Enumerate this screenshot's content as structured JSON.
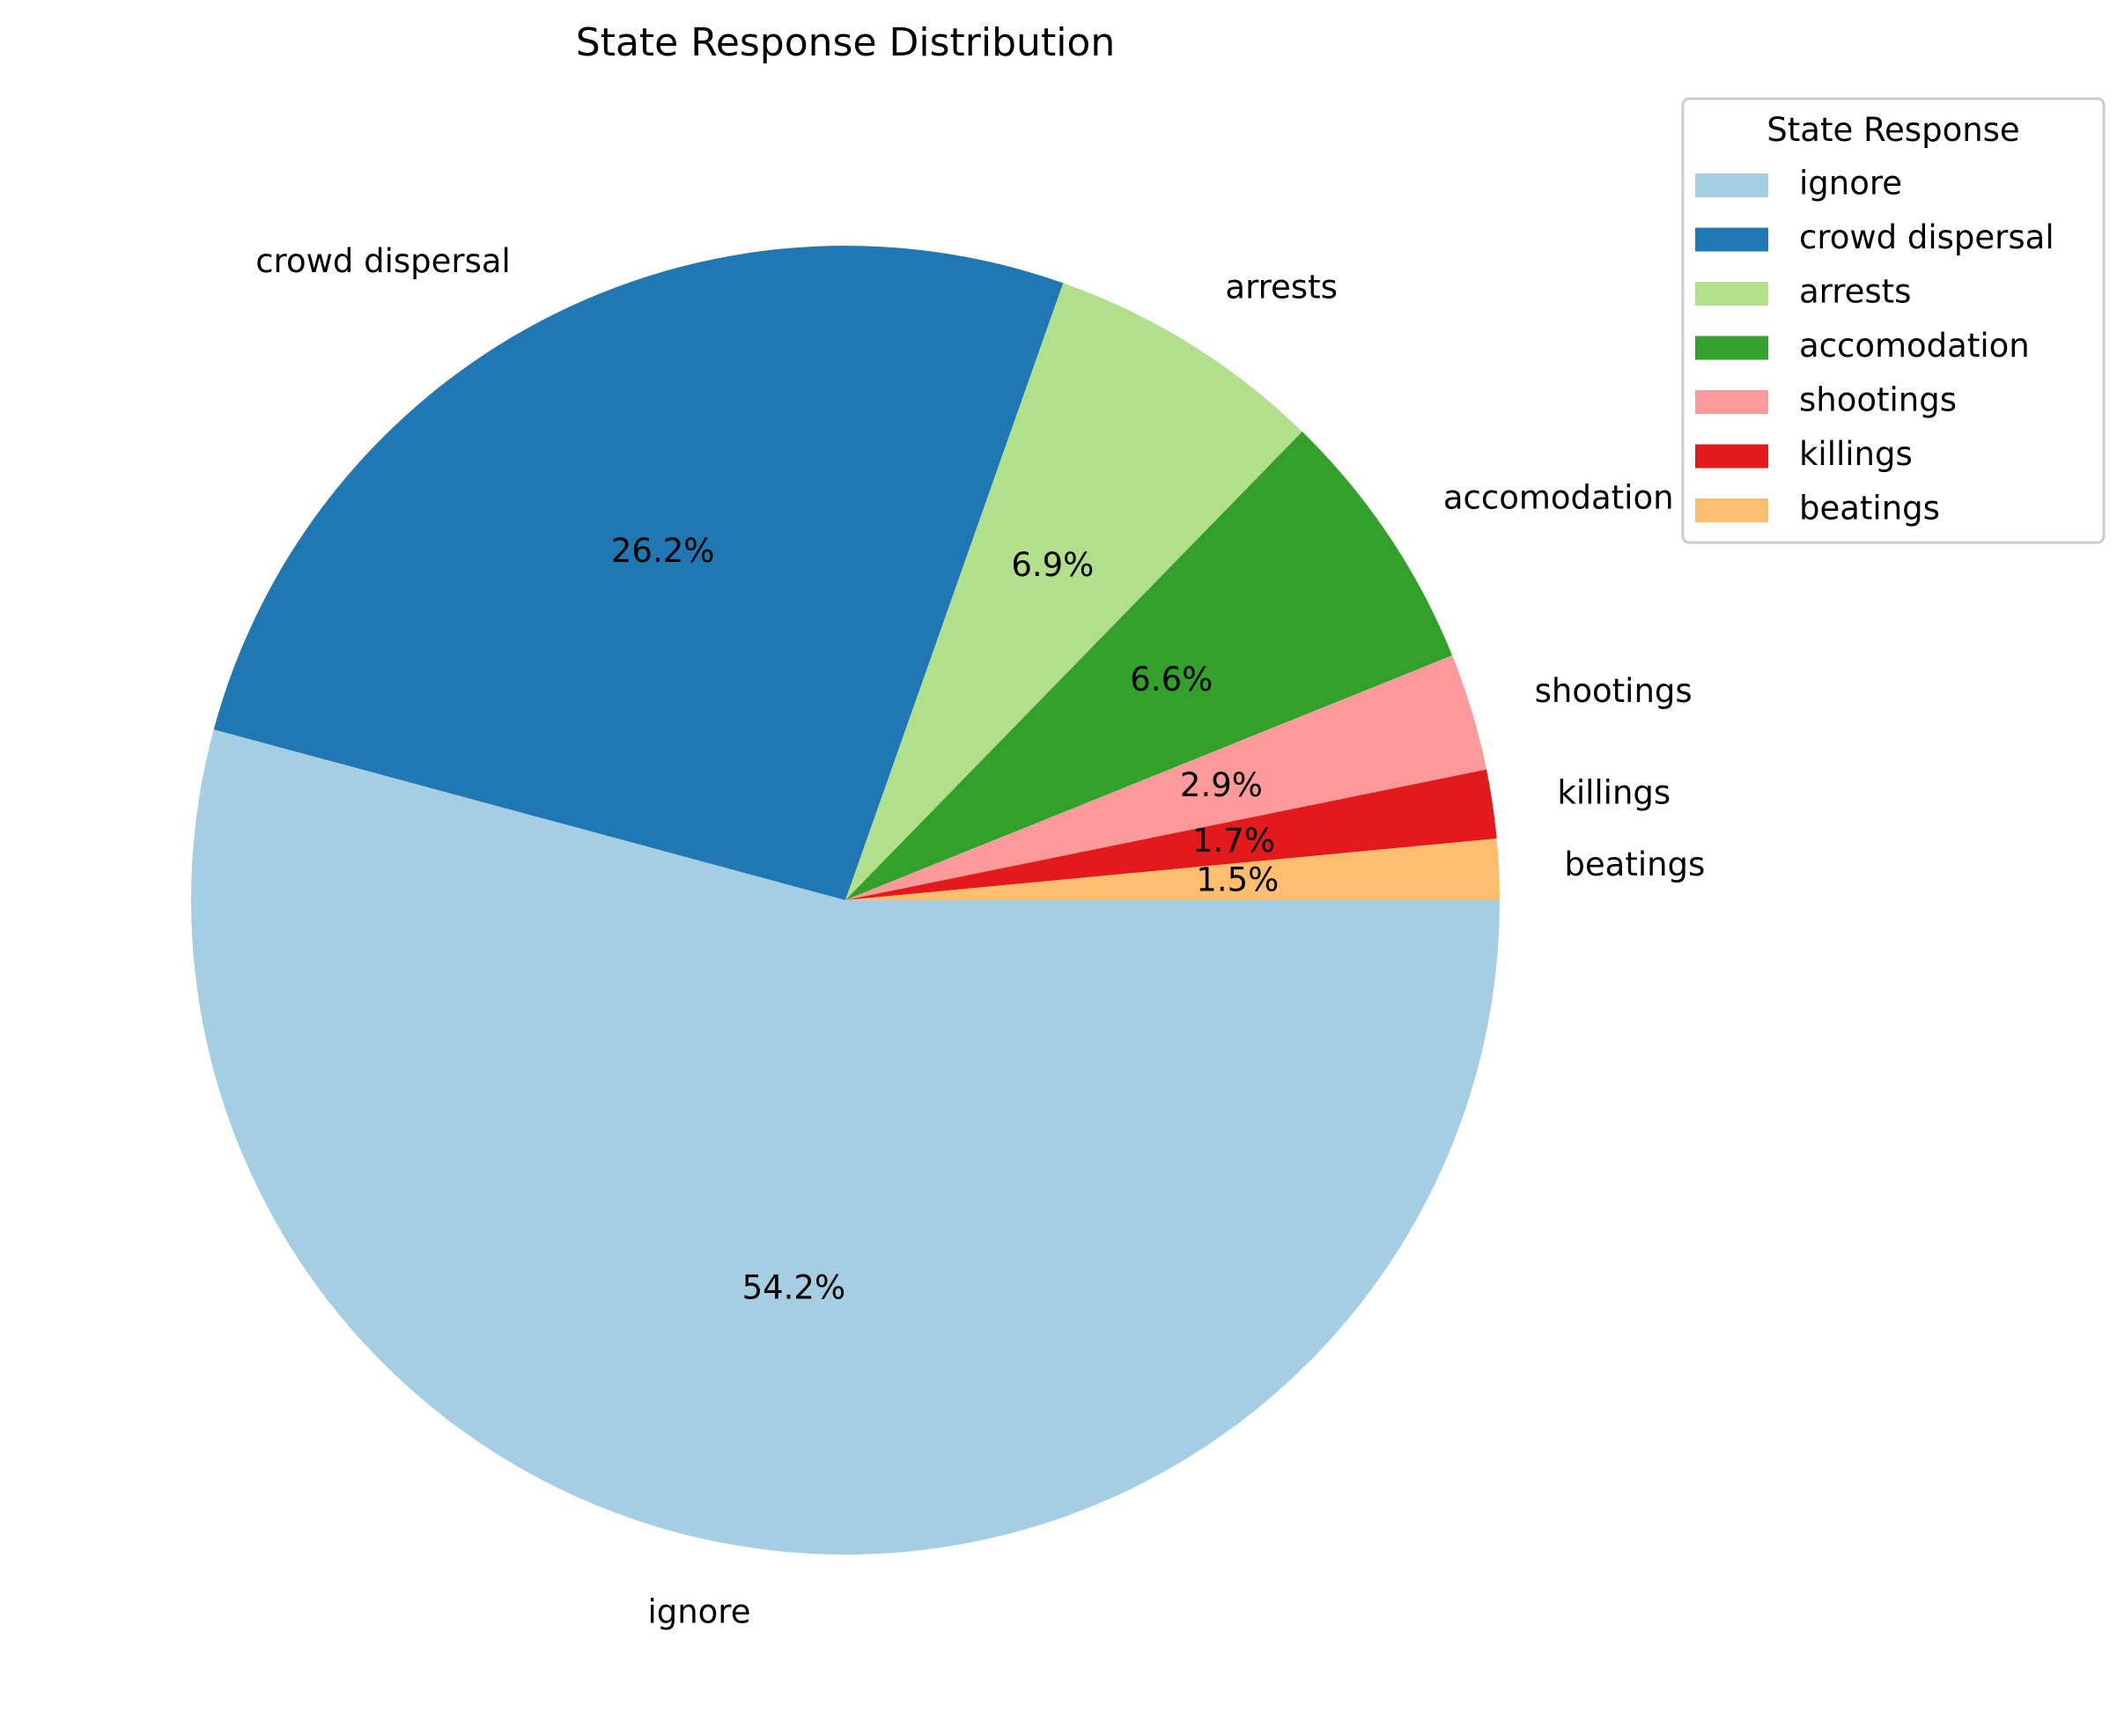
{
  "chart_data": {
    "type": "pie",
    "title": "State Response Distribution",
    "start_angle_deg": 0,
    "direction": "clockwise",
    "legend": {
      "title": "State Response",
      "placement": "top-right"
    },
    "slices": [
      {
        "label": "ignore",
        "value": 54.2,
        "pct_label": "54.2%",
        "color": "#a6cee3"
      },
      {
        "label": "crowd dispersal",
        "value": 26.2,
        "pct_label": "26.2%",
        "color": "#1f78b4"
      },
      {
        "label": "arrests",
        "value": 6.9,
        "pct_label": "6.9%",
        "color": "#b2df8a"
      },
      {
        "label": "accomodation",
        "value": 6.6,
        "pct_label": "6.6%",
        "color": "#33a02c"
      },
      {
        "label": "shootings",
        "value": 2.9,
        "pct_label": "2.9%",
        "color": "#fb9a99"
      },
      {
        "label": "killings",
        "value": 1.7,
        "pct_label": "1.7%",
        "color": "#e31a1c"
      },
      {
        "label": "beatings",
        "value": 1.5,
        "pct_label": "1.5%",
        "color": "#fdbf6f"
      }
    ]
  }
}
